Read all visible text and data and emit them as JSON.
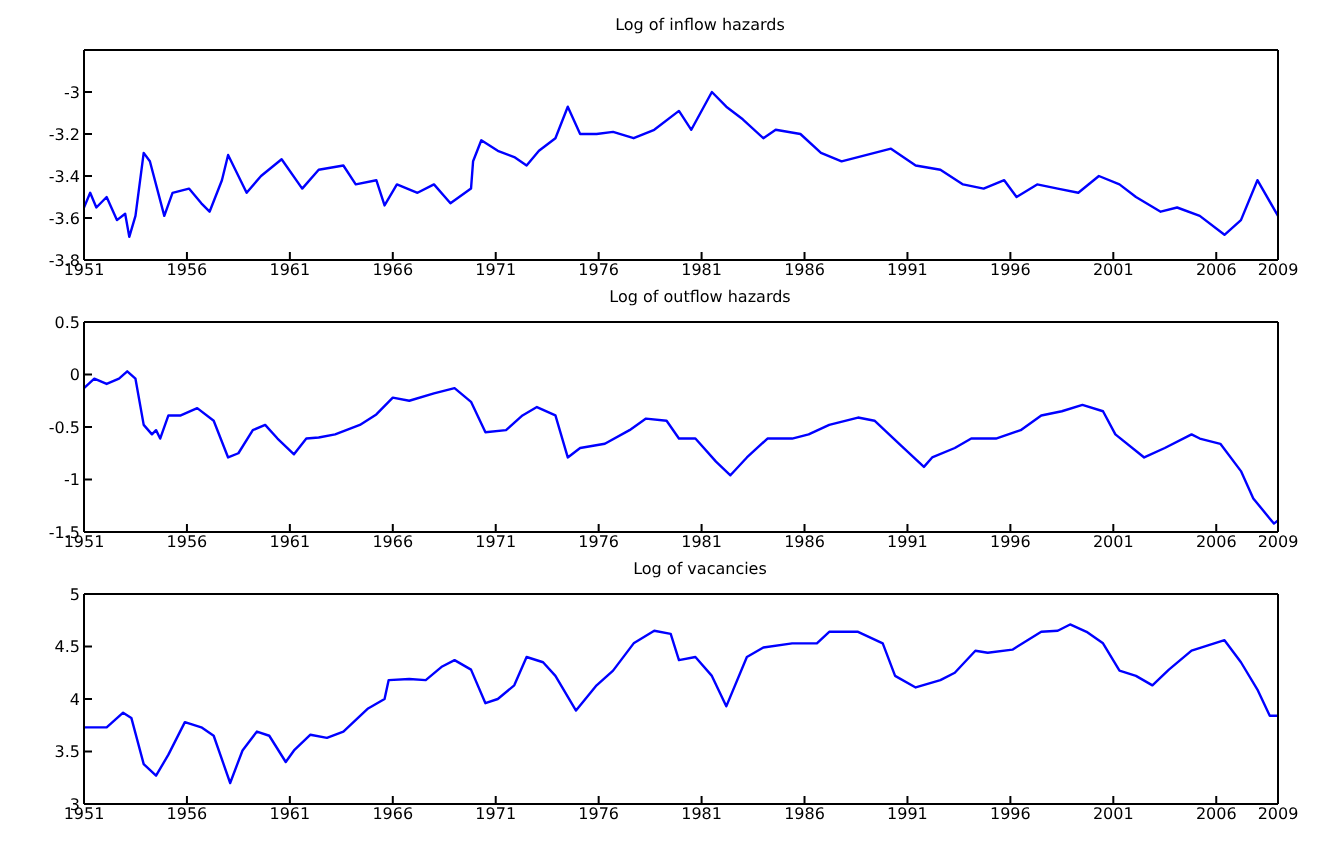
{
  "chart_data": [
    {
      "type": "line",
      "title": "Log of inflow hazards",
      "xlim": [
        1951,
        2009
      ],
      "xticks": [
        1951,
        1956,
        1961,
        1966,
        1971,
        1976,
        1981,
        1986,
        1991,
        1996,
        2001,
        2006,
        2009
      ],
      "ylim": [
        -3.8,
        -2.8
      ],
      "yticks": [
        -3.8,
        -3.6,
        -3.4,
        -3.2,
        -3
      ],
      "series": [
        {
          "color": "#0000ff",
          "x": [
            1951.0,
            1951.3,
            1951.6,
            1952.1,
            1952.6,
            1953.0,
            1953.2,
            1953.5,
            1953.9,
            1954.2,
            1954.9,
            1955.3,
            1956.1,
            1956.7,
            1957.1,
            1957.7,
            1958.0,
            1958.9,
            1959.6,
            1960.6,
            1961.6,
            1962.4,
            1963.6,
            1964.2,
            1965.2,
            1965.6,
            1966.2,
            1967.2,
            1968.0,
            1968.8,
            1969.8,
            1969.9,
            1970.3,
            1971.1,
            1971.9,
            1972.5,
            1973.1,
            1973.9,
            1974.5,
            1975.1,
            1975.9,
            1976.7,
            1977.7,
            1978.7,
            1979.9,
            1980.5,
            1981.5,
            1982.2,
            1983.0,
            1984.0,
            1984.6,
            1985.8,
            1986.8,
            1987.8,
            1988.6,
            1990.2,
            1991.4,
            1992.6,
            1993.7,
            1994.7,
            1995.7,
            1996.3,
            1997.3,
            1998.3,
            1999.3,
            2000.3,
            2001.3,
            2002.1,
            2003.3,
            2004.1,
            2005.2,
            2006.4,
            2007.2,
            2008.0,
            2009.0
          ],
          "values": [
            -3.55,
            -3.48,
            -3.55,
            -3.5,
            -3.61,
            -3.58,
            -3.69,
            -3.59,
            -3.29,
            -3.33,
            -3.59,
            -3.48,
            -3.46,
            -3.53,
            -3.57,
            -3.42,
            -3.3,
            -3.48,
            -3.4,
            -3.32,
            -3.46,
            -3.37,
            -3.35,
            -3.44,
            -3.42,
            -3.54,
            -3.44,
            -3.48,
            -3.44,
            -3.53,
            -3.46,
            -3.33,
            -3.23,
            -3.28,
            -3.31,
            -3.35,
            -3.28,
            -3.22,
            -3.07,
            -3.2,
            -3.2,
            -3.19,
            -3.22,
            -3.18,
            -3.09,
            -3.18,
            -3.0,
            -3.07,
            -3.13,
            -3.22,
            -3.18,
            -3.2,
            -3.29,
            -3.33,
            -3.31,
            -3.27,
            -3.35,
            -3.37,
            -3.44,
            -3.46,
            -3.42,
            -3.5,
            -3.44,
            -3.46,
            -3.48,
            -3.4,
            -3.44,
            -3.5,
            -3.57,
            -3.55,
            -3.59,
            -3.68,
            -3.61,
            -3.42,
            -3.59
          ]
        }
      ]
    },
    {
      "type": "line",
      "title": "Log of outflow hazards",
      "xlim": [
        1951,
        2009
      ],
      "xticks": [
        1951,
        1956,
        1961,
        1966,
        1971,
        1976,
        1981,
        1986,
        1991,
        1996,
        2001,
        2006,
        2009
      ],
      "ylim": [
        -1.5,
        0.5
      ],
      "yticks": [
        -1.5,
        -1,
        -0.5,
        0,
        0.5
      ],
      "series": [
        {
          "color": "#0000ff",
          "x": [
            1951.0,
            1951.5,
            1952.1,
            1952.7,
            1953.1,
            1953.5,
            1953.9,
            1954.3,
            1954.5,
            1954.7,
            1955.1,
            1955.7,
            1956.5,
            1957.3,
            1958.0,
            1958.5,
            1959.2,
            1959.8,
            1960.4,
            1961.2,
            1961.8,
            1962.4,
            1963.2,
            1964.4,
            1965.2,
            1966.0,
            1966.8,
            1968.0,
            1969.0,
            1969.8,
            1970.5,
            1971.5,
            1972.3,
            1973.0,
            1973.9,
            1974.5,
            1975.1,
            1976.3,
            1977.5,
            1978.3,
            1979.3,
            1979.9,
            1980.7,
            1981.7,
            1982.4,
            1983.2,
            1984.2,
            1985.4,
            1986.2,
            1987.2,
            1988.6,
            1989.4,
            1990.6,
            1991.8,
            1992.2,
            1993.3,
            1994.1,
            1995.3,
            1996.5,
            1997.5,
            1998.5,
            1999.5,
            2000.5,
            2001.1,
            2002.5,
            2003.5,
            2004.8,
            2005.2,
            2006.2,
            2007.2,
            2007.8,
            2008.8,
            2009.0
          ],
          "values": [
            -0.13,
            -0.04,
            -0.09,
            -0.04,
            0.03,
            -0.04,
            -0.48,
            -0.57,
            -0.53,
            -0.61,
            -0.39,
            -0.39,
            -0.32,
            -0.44,
            -0.79,
            -0.75,
            -0.53,
            -0.48,
            -0.61,
            -0.76,
            -0.61,
            -0.6,
            -0.57,
            -0.48,
            -0.38,
            -0.22,
            -0.25,
            -0.18,
            -0.13,
            -0.26,
            -0.55,
            -0.53,
            -0.39,
            -0.31,
            -0.39,
            -0.79,
            -0.7,
            -0.66,
            -0.53,
            -0.42,
            -0.44,
            -0.61,
            -0.61,
            -0.83,
            -0.96,
            -0.79,
            -0.61,
            -0.61,
            -0.57,
            -0.48,
            -0.41,
            -0.44,
            -0.66,
            -0.88,
            -0.79,
            -0.7,
            -0.61,
            -0.61,
            -0.53,
            -0.39,
            -0.35,
            -0.29,
            -0.35,
            -0.57,
            -0.79,
            -0.7,
            -0.57,
            -0.61,
            -0.66,
            -0.92,
            -1.18,
            -1.42,
            -1.39
          ]
        }
      ]
    },
    {
      "type": "line",
      "title": "Log of vacancies",
      "xlim": [
        1951,
        2009
      ],
      "xticks": [
        1951,
        1956,
        1961,
        1966,
        1971,
        1976,
        1981,
        1986,
        1991,
        1996,
        2001,
        2006,
        2009
      ],
      "ylim": [
        3,
        5
      ],
      "yticks": [
        3,
        3.5,
        4,
        4.5,
        5
      ],
      "series": [
        {
          "color": "#0000ff",
          "x": [
            1951.0,
            1952.1,
            1952.9,
            1953.3,
            1953.9,
            1954.5,
            1955.1,
            1955.9,
            1956.7,
            1957.3,
            1958.1,
            1958.7,
            1959.4,
            1960.0,
            1960.8,
            1961.2,
            1962.0,
            1962.8,
            1963.6,
            1964.8,
            1965.6,
            1965.8,
            1966.8,
            1967.6,
            1968.4,
            1969.0,
            1969.8,
            1970.5,
            1971.1,
            1971.9,
            1972.5,
            1973.3,
            1973.9,
            1974.9,
            1975.9,
            1976.7,
            1977.7,
            1978.7,
            1979.5,
            1979.9,
            1980.7,
            1981.5,
            1982.2,
            1983.2,
            1984.0,
            1985.4,
            1986.6,
            1987.2,
            1988.6,
            1989.8,
            1990.4,
            1991.4,
            1992.6,
            1993.3,
            1994.3,
            1994.9,
            1996.1,
            1997.5,
            1998.3,
            1998.9,
            1999.7,
            2000.5,
            2001.3,
            2002.1,
            2002.9,
            2003.7,
            2004.8,
            2005.6,
            2006.4,
            2007.2,
            2008.0,
            2008.6,
            2009.0
          ],
          "values": [
            3.73,
            3.73,
            3.87,
            3.82,
            3.38,
            3.27,
            3.47,
            3.78,
            3.73,
            3.65,
            3.2,
            3.51,
            3.69,
            3.65,
            3.4,
            3.51,
            3.66,
            3.63,
            3.69,
            3.91,
            4.0,
            4.18,
            4.19,
            4.18,
            4.31,
            4.37,
            4.28,
            3.96,
            4.0,
            4.13,
            4.4,
            4.35,
            4.22,
            3.89,
            4.13,
            4.27,
            4.53,
            4.65,
            4.62,
            4.37,
            4.4,
            4.22,
            3.93,
            4.4,
            4.49,
            4.53,
            4.53,
            4.64,
            4.64,
            4.53,
            4.22,
            4.11,
            4.18,
            4.25,
            4.46,
            4.44,
            4.47,
            4.64,
            4.65,
            4.71,
            4.64,
            4.53,
            4.27,
            4.22,
            4.13,
            4.28,
            4.46,
            4.51,
            4.56,
            4.35,
            4.09,
            3.84,
            3.84
          ]
        }
      ]
    }
  ]
}
